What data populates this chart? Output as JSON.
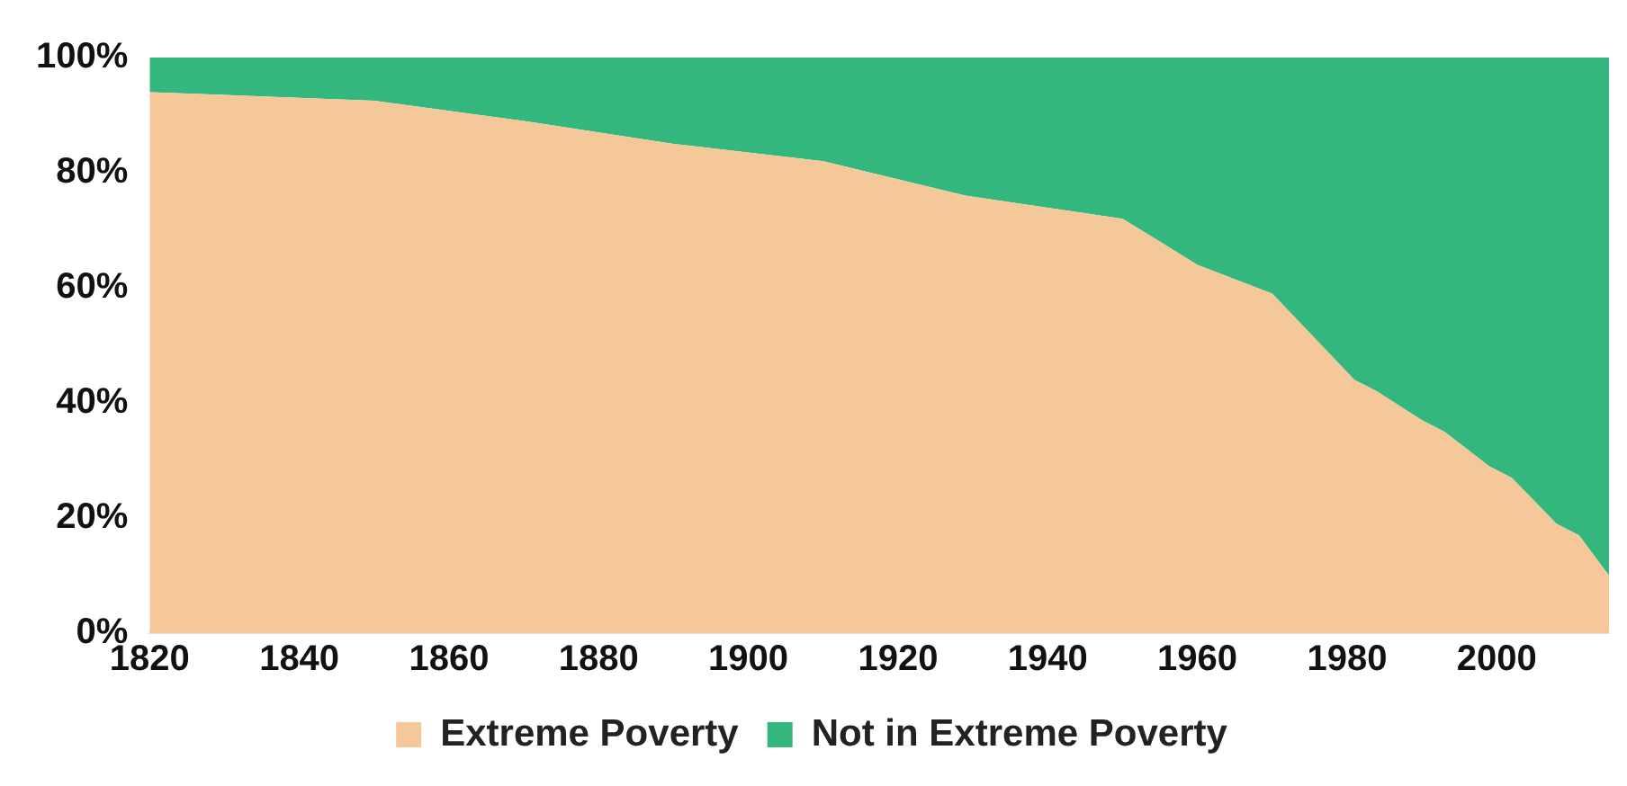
{
  "chart_data": {
    "type": "area",
    "stacked": true,
    "x": [
      1820,
      1850,
      1870,
      1890,
      1910,
      1929,
      1950,
      1960,
      1970,
      1981,
      1984,
      1990,
      1993,
      1999,
      2002,
      2008,
      2011,
      2015
    ],
    "series": [
      {
        "name": "Extreme Poverty",
        "color": "#f5c89a",
        "values": [
          94,
          92.5,
          89,
          85,
          82,
          76,
          72,
          64,
          59,
          44,
          42,
          37,
          35,
          29,
          27,
          19,
          17,
          10
        ]
      },
      {
        "name": "Not in Extreme Poverty",
        "color": "#33b77f",
        "values": [
          6,
          7.5,
          11,
          15,
          18,
          24,
          28,
          36,
          41,
          56,
          58,
          63,
          65,
          71,
          73,
          81,
          83,
          90
        ]
      }
    ],
    "xlim": [
      1820,
      2015
    ],
    "xticks": [
      1820,
      1840,
      1860,
      1880,
      1900,
      1920,
      1940,
      1960,
      1980,
      2000
    ],
    "ylim": [
      0,
      100
    ],
    "yticks": [
      {
        "value": 0,
        "label": "0%"
      },
      {
        "value": 20,
        "label": "20%"
      },
      {
        "value": 40,
        "label": "40%"
      },
      {
        "value": 60,
        "label": "60%"
      },
      {
        "value": 80,
        "label": "80%"
      },
      {
        "value": 100,
        "label": "100%"
      }
    ],
    "grid": false,
    "legend": "bottom"
  }
}
